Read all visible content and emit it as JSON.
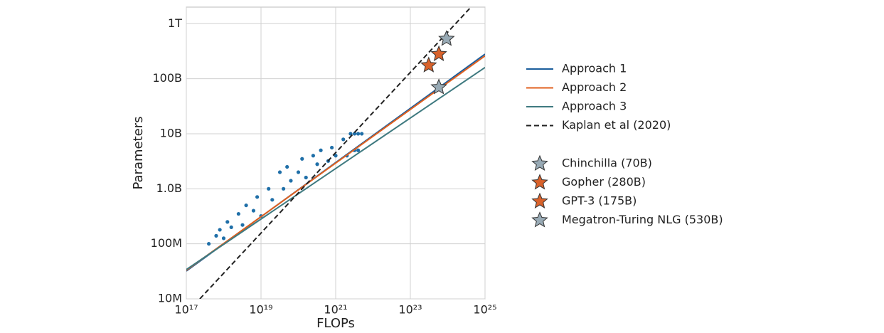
{
  "chart_data": {
    "type": "scatter",
    "x_label": "FLOPs",
    "y_label": "Parameters",
    "xscale": "log",
    "yscale": "log",
    "grid": true,
    "xlim": [
      1e+17,
      1e+25
    ],
    "ylim": [
      10000000.0,
      2000000000000.0
    ],
    "xticks": [
      {
        "value": 1e+17,
        "label": "10¹⁷"
      },
      {
        "value": 1e+19,
        "label": "10¹⁹"
      },
      {
        "value": 1e+21,
        "label": "10²¹"
      },
      {
        "value": 1e+23,
        "label": "10²³"
      },
      {
        "value": 1e+25,
        "label": "10²⁵"
      }
    ],
    "yticks": [
      {
        "value": 10000000.0,
        "label": "10M"
      },
      {
        "value": 100000000.0,
        "label": "100M"
      },
      {
        "value": 1000000000.0,
        "label": "1.0B"
      },
      {
        "value": 10000000000.0,
        "label": "10B"
      },
      {
        "value": 100000000000.0,
        "label": "100B"
      },
      {
        "value": 1000000000000.0,
        "label": "1T"
      }
    ],
    "series": [
      {
        "kind": "scatter",
        "color": "#1f6fa8",
        "x": [
          4e+17,
          6.3e+17,
          7.9e+17,
          1e+18,
          1.26e+18,
          1.6e+18,
          2.5e+18,
          3.2e+18,
          4e+18,
          6.3e+18,
          7.9e+18,
          1e+19,
          1.6e+19,
          2e+19,
          3.2e+19,
          4e+19,
          5e+19,
          6.3e+19,
          1e+20,
          1.26e+20,
          1.6e+20,
          2.5e+20,
          3.2e+20,
          4e+20,
          6.3e+20,
          7.9e+20,
          1e+21,
          1.6e+21,
          2e+21,
          2.5e+21,
          3.2e+21,
          4e+21,
          5e+21,
          3.2e+21,
          4e+21
        ],
        "values": [
          100000000.0,
          140000000.0,
          180000000.0,
          126000000.0,
          250000000.0,
          200000000.0,
          350000000.0,
          220000000.0,
          500000000.0,
          400000000.0,
          710000000.0,
          320000000.0,
          1000000000.0,
          630000000.0,
          2000000000.0,
          1000000000.0,
          2500000000.0,
          1400000000.0,
          2000000000.0,
          3500000000.0,
          1600000000.0,
          4000000000.0,
          2800000000.0,
          5000000000.0,
          3200000000.0,
          5600000000.0,
          4000000000.0,
          7900000000.0,
          4000000000.0,
          10000000000.0,
          10000000000.0,
          10000000000.0,
          10000000000.0,
          5000000000.0,
          5000000000.0
        ]
      },
      {
        "kind": "line",
        "name": "Approach 1",
        "color": "#1c5e9c",
        "x": [
          1e+17,
          1e+25
        ],
        "values": [
          32000000.0,
          280000000000.0
        ]
      },
      {
        "kind": "line",
        "name": "Approach 2",
        "color": "#e0601f",
        "x": [
          1e+17,
          1e+25
        ],
        "values": [
          33000000.0,
          260000000000.0
        ]
      },
      {
        "kind": "line",
        "name": "Approach 3",
        "color": "#3f7a80",
        "x": [
          1e+17,
          1e+25
        ],
        "values": [
          34000000.0,
          160000000000.0
        ]
      },
      {
        "kind": "dashed",
        "name": "Kaplan et al (2020)",
        "color": "#222222",
        "x": [
          2.3e+17,
          4.2e+24
        ],
        "values": [
          10000000.0,
          2000000000000.0
        ]
      },
      {
        "kind": "star",
        "name": "Chinchilla (70B)",
        "color": "#98aab5",
        "x": [
          5.8e+23
        ],
        "values": [
          70000000000.0
        ]
      },
      {
        "kind": "star",
        "name": "Gopher (280B)",
        "color": "#d9622b",
        "x": [
          5.8e+23
        ],
        "values": [
          280000000000.0
        ]
      },
      {
        "kind": "star",
        "name": "GPT-3 (175B)",
        "color": "#d9622b",
        "x": [
          3.1e+23
        ],
        "values": [
          175000000000.0
        ]
      },
      {
        "kind": "star",
        "name": "Megatron-Turing NLG (530B)",
        "color": "#98aab5",
        "x": [
          9.3e+23
        ],
        "values": [
          530000000000.0
        ]
      }
    ]
  }
}
